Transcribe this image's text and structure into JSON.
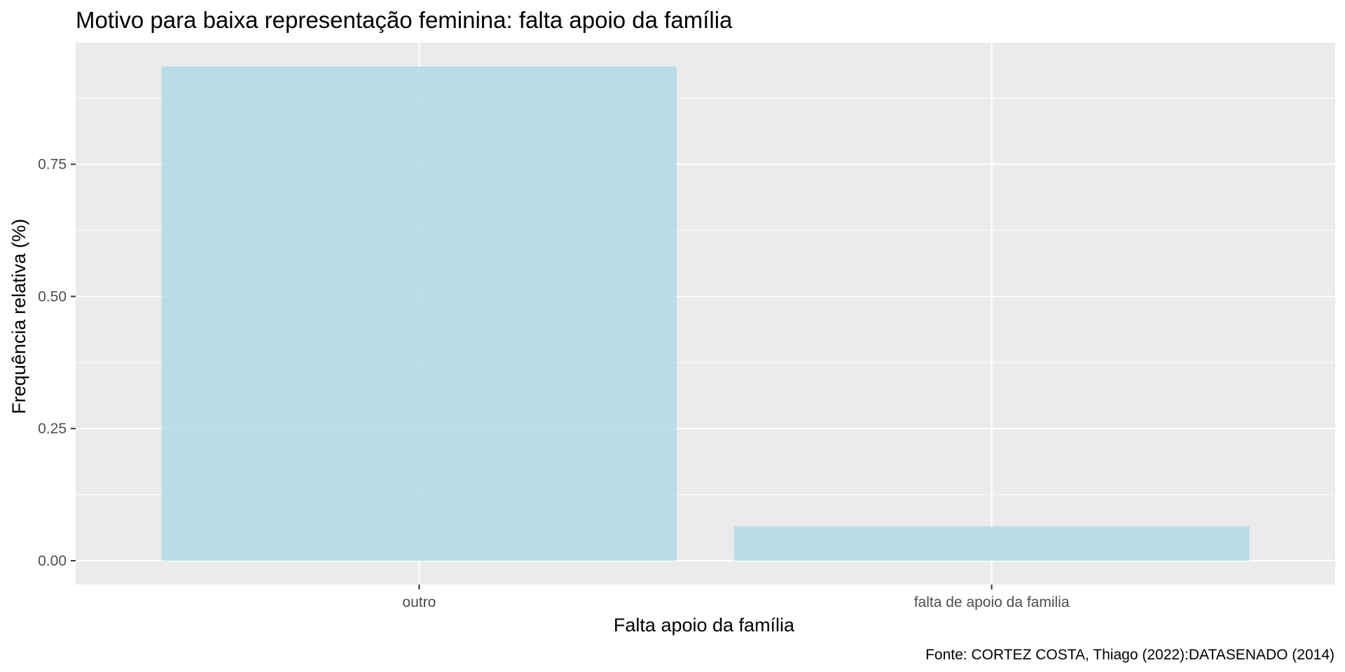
{
  "chart_data": {
    "type": "bar",
    "title": "Motivo para baixa representação feminina: falta apoio da família",
    "xlabel": "Falta apoio da família",
    "ylabel": "Frequência relativa (%)",
    "caption": "Fonte: CORTEZ COSTA, Thiago (2022):DATASENADO (2014)",
    "categories": [
      "outro",
      "falta de apoio da familia"
    ],
    "values": [
      0.935,
      0.065
    ],
    "ylim": [
      -0.045,
      0.98
    ],
    "yticks": [
      0,
      0.25,
      0.5,
      0.75
    ],
    "ytick_labels": [
      "0.00",
      "0.25",
      "0.50",
      "0.75"
    ],
    "grid": true,
    "colors": {
      "bar": "#add8e6",
      "panel": "#ebebeb",
      "grid": "#ffffff",
      "tick": "#333333"
    }
  }
}
